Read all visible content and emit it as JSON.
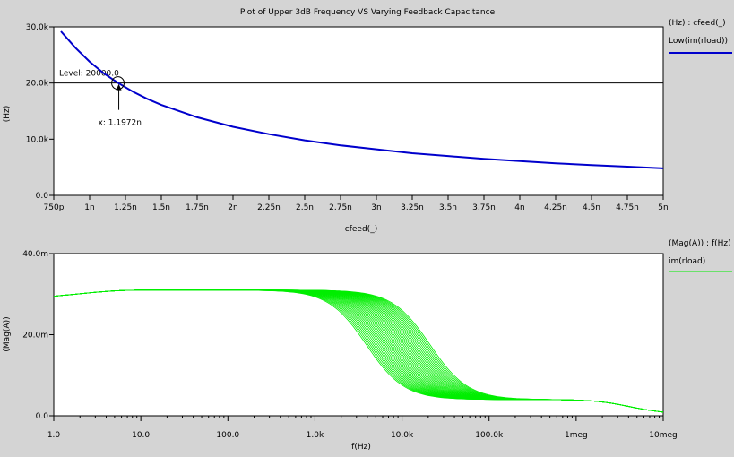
{
  "window": {
    "title": "Plot of Upper 3dB Frequency VS Varying Feedback Capacitance"
  },
  "colors": {
    "background": "#d4d4d4",
    "plot_bg": "#ffffff",
    "top_trace": "#0000cc",
    "bottom_trace": "#00ee00",
    "marker": "#000000"
  },
  "chart_data": [
    {
      "type": "line",
      "xlabel": "cfeed(_)",
      "ylabel": "(Hz)",
      "x_ticks": [
        "750p",
        "1n",
        "1.25n",
        "1.5n",
        "1.75n",
        "2n",
        "2.25n",
        "2.5n",
        "2.75n",
        "3n",
        "3.25n",
        "3.5n",
        "3.75n",
        "4n",
        "4.25n",
        "4.5n",
        "4.75n",
        "5n"
      ],
      "x_tick_values": [
        0.75,
        1.0,
        1.25,
        1.5,
        1.75,
        2.0,
        2.25,
        2.5,
        2.75,
        3.0,
        3.25,
        3.5,
        3.75,
        4.0,
        4.25,
        4.5,
        4.75,
        5.0
      ],
      "y_ticks": [
        "0.0",
        "10.0k",
        "20.0k",
        "30.0k"
      ],
      "y_tick_values": [
        0,
        10000,
        20000,
        30000
      ],
      "xlim": [
        0.75,
        5.0
      ],
      "ylim": [
        0,
        30000
      ],
      "grid": false,
      "legend": {
        "header": "(Hz) : cfeed(_)",
        "entries": [
          "Low(im(rload))"
        ]
      },
      "series": [
        {
          "name": "Low(im(rload))",
          "x": [
            0.8,
            0.9,
            1.0,
            1.1,
            1.2,
            1.3,
            1.4,
            1.5,
            1.75,
            2.0,
            2.25,
            2.5,
            2.75,
            3.0,
            3.25,
            3.5,
            3.75,
            4.0,
            4.25,
            4.5,
            4.75,
            5.0
          ],
          "y": [
            29200,
            26300,
            23800,
            21700,
            20000,
            18500,
            17200,
            16100,
            13900,
            12200,
            10900,
            9800,
            8900,
            8200,
            7500,
            7000,
            6500,
            6100,
            5700,
            5400,
            5100,
            4800
          ]
        }
      ],
      "annotations": {
        "level_label": "Level: 20000.0",
        "level_value": 20000,
        "cross_label": "x: 1.1972n",
        "cross_x": 1.1972
      }
    },
    {
      "type": "line",
      "xlabel": "f(Hz)",
      "ylabel": "(Mag(A))",
      "x_scale": "log",
      "x_ticks": [
        "1.0",
        "10.0",
        "100.0",
        "1.0k",
        "10.0k",
        "100.0k",
        "1meg",
        "10meg"
      ],
      "x_tick_values": [
        1,
        10,
        100,
        1000,
        10000,
        100000,
        1000000,
        10000000
      ],
      "y_ticks": [
        "0.0",
        "20.0m",
        "40.0m"
      ],
      "y_tick_values": [
        0,
        0.02,
        0.04
      ],
      "xlim": [
        1,
        10000000
      ],
      "ylim": [
        0,
        0.04
      ],
      "grid": false,
      "legend": {
        "header": "(Mag(A)) : f(Hz)",
        "entries": [
          "im(rload)"
        ]
      },
      "family": {
        "count": 36,
        "low_gain": 0.031,
        "mid_gain": 0.004,
        "pole1_min_hz": 3900,
        "pole1_max_hz": 21000,
        "pole2_hz": 3000000,
        "start_hz": 1,
        "start_gain": 0.0295
      }
    }
  ]
}
